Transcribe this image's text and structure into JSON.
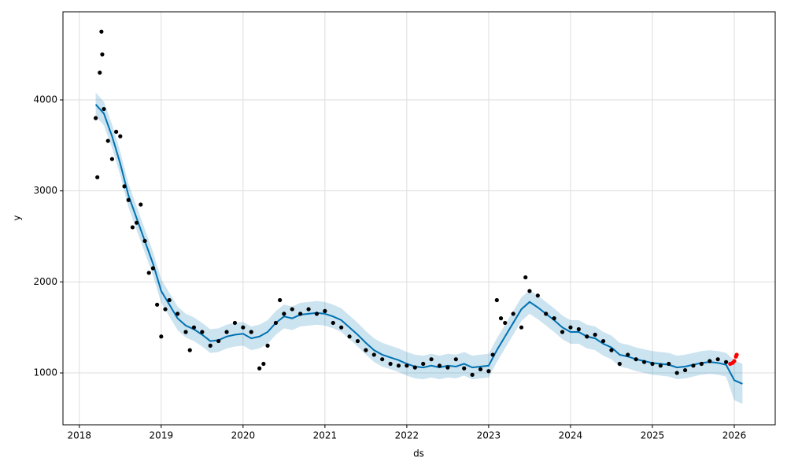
{
  "chart_data": {
    "type": "forecast",
    "xlabel": "ds",
    "ylabel": "y",
    "xlim": [
      2017.8,
      2026.5
    ],
    "ylim": [
      430,
      4968
    ],
    "xticks": [
      2018,
      2019,
      2020,
      2021,
      2022,
      2023,
      2024,
      2025,
      2026
    ],
    "yticks": [
      1000,
      2000,
      3000,
      4000
    ],
    "grid": true,
    "observed": {
      "color": "#000000",
      "x": [
        2018.2,
        2018.22,
        2018.25,
        2018.27,
        2018.28,
        2018.3,
        2018.35,
        2018.4,
        2018.45,
        2018.5,
        2018.55,
        2018.6,
        2018.65,
        2018.7,
        2018.75,
        2018.8,
        2018.85,
        2018.9,
        2018.95,
        2019.0,
        2019.05,
        2019.1,
        2019.2,
        2019.3,
        2019.35,
        2019.4,
        2019.5,
        2019.6,
        2019.7,
        2019.8,
        2019.9,
        2020.0,
        2020.1,
        2020.2,
        2020.25,
        2020.3,
        2020.4,
        2020.45,
        2020.5,
        2020.6,
        2020.7,
        2020.8,
        2020.9,
        2021.0,
        2021.1,
        2021.2,
        2021.3,
        2021.4,
        2021.5,
        2021.6,
        2021.7,
        2021.8,
        2021.9,
        2022.0,
        2022.1,
        2022.2,
        2022.3,
        2022.4,
        2022.5,
        2022.6,
        2022.7,
        2022.8,
        2022.9,
        2023.0,
        2023.05,
        2023.1,
        2023.15,
        2023.2,
        2023.3,
        2023.4,
        2023.45,
        2023.5,
        2023.6,
        2023.7,
        2023.8,
        2023.9,
        2024.0,
        2024.1,
        2024.2,
        2024.3,
        2024.4,
        2024.5,
        2024.6,
        2024.7,
        2024.8,
        2024.9,
        2025.0,
        2025.1,
        2025.2,
        2025.3,
        2025.4,
        2025.5,
        2025.6,
        2025.7,
        2025.8,
        2025.9
      ],
      "values": [
        3800,
        3150,
        4300,
        4750,
        4500,
        3900,
        3550,
        3350,
        3650,
        3600,
        3050,
        2900,
        2600,
        2650,
        2850,
        2450,
        2100,
        2150,
        1750,
        1400,
        1700,
        1800,
        1650,
        1450,
        1250,
        1500,
        1450,
        1300,
        1350,
        1450,
        1550,
        1500,
        1450,
        1050,
        1100,
        1300,
        1550,
        1800,
        1650,
        1700,
        1650,
        1700,
        1650,
        1680,
        1550,
        1500,
        1400,
        1350,
        1250,
        1200,
        1150,
        1100,
        1080,
        1080,
        1060,
        1100,
        1150,
        1080,
        1060,
        1150,
        1050,
        980,
        1040,
        1020,
        1200,
        1800,
        1600,
        1550,
        1650,
        1500,
        2050,
        1900,
        1850,
        1650,
        1600,
        1450,
        1500,
        1480,
        1400,
        1420,
        1350,
        1250,
        1100,
        1200,
        1150,
        1120,
        1100,
        1080,
        1100,
        1000,
        1030,
        1080,
        1100,
        1130,
        1150,
        1120
      ]
    },
    "recent": {
      "color": "#ff0000",
      "x": [
        2025.95,
        2025.98,
        2026.0,
        2026.02,
        2026.03
      ],
      "values": [
        1100,
        1110,
        1130,
        1180,
        1200
      ]
    },
    "forecast": {
      "color": "#0072b2",
      "band_color": "#0072b2",
      "x": [
        2018.2,
        2018.3,
        2018.4,
        2018.5,
        2018.6,
        2018.7,
        2018.8,
        2018.9,
        2019.0,
        2019.1,
        2019.2,
        2019.3,
        2019.4,
        2019.5,
        2019.6,
        2019.7,
        2019.8,
        2019.9,
        2020.0,
        2020.1,
        2020.2,
        2020.3,
        2020.4,
        2020.5,
        2020.6,
        2020.7,
        2020.8,
        2020.9,
        2021.0,
        2021.1,
        2021.2,
        2021.3,
        2021.4,
        2021.5,
        2021.6,
        2021.7,
        2021.8,
        2021.9,
        2022.0,
        2022.1,
        2022.2,
        2022.3,
        2022.4,
        2022.5,
        2022.6,
        2022.7,
        2022.8,
        2022.9,
        2023.0,
        2023.1,
        2023.2,
        2023.3,
        2023.4,
        2023.5,
        2023.6,
        2023.7,
        2023.8,
        2023.9,
        2024.0,
        2024.1,
        2024.2,
        2024.3,
        2024.4,
        2024.5,
        2024.6,
        2024.7,
        2024.8,
        2024.9,
        2025.0,
        2025.1,
        2025.2,
        2025.3,
        2025.4,
        2025.5,
        2025.6,
        2025.7,
        2025.8,
        2025.9,
        2026.0,
        2026.1
      ],
      "values": [
        3950,
        3850,
        3600,
        3300,
        2950,
        2700,
        2450,
        2200,
        1900,
        1750,
        1600,
        1520,
        1480,
        1420,
        1350,
        1360,
        1400,
        1420,
        1430,
        1380,
        1400,
        1450,
        1550,
        1620,
        1600,
        1640,
        1650,
        1660,
        1650,
        1620,
        1580,
        1500,
        1420,
        1330,
        1250,
        1200,
        1170,
        1140,
        1100,
        1070,
        1060,
        1080,
        1060,
        1080,
        1070,
        1100,
        1060,
        1070,
        1080,
        1250,
        1400,
        1550,
        1700,
        1780,
        1720,
        1650,
        1580,
        1500,
        1450,
        1450,
        1400,
        1380,
        1320,
        1280,
        1200,
        1180,
        1150,
        1130,
        1110,
        1100,
        1090,
        1060,
        1070,
        1090,
        1110,
        1120,
        1110,
        1090,
        920,
        880
      ],
      "lower": [
        3820,
        3720,
        3470,
        3170,
        2820,
        2570,
        2320,
        2070,
        1770,
        1620,
        1470,
        1390,
        1350,
        1290,
        1220,
        1230,
        1270,
        1290,
        1300,
        1250,
        1270,
        1320,
        1420,
        1490,
        1470,
        1510,
        1520,
        1530,
        1520,
        1490,
        1450,
        1370,
        1290,
        1200,
        1120,
        1070,
        1040,
        1010,
        970,
        940,
        930,
        950,
        930,
        950,
        940,
        970,
        930,
        940,
        950,
        1120,
        1270,
        1420,
        1570,
        1650,
        1590,
        1520,
        1450,
        1370,
        1320,
        1320,
        1270,
        1250,
        1190,
        1150,
        1070,
        1050,
        1020,
        1000,
        980,
        970,
        960,
        930,
        940,
        960,
        980,
        990,
        980,
        960,
        700,
        660
      ],
      "upper": [
        4080,
        3980,
        3730,
        3430,
        3080,
        2830,
        2580,
        2330,
        2030,
        1880,
        1730,
        1650,
        1610,
        1550,
        1480,
        1490,
        1530,
        1550,
        1560,
        1510,
        1530,
        1580,
        1680,
        1750,
        1730,
        1770,
        1780,
        1790,
        1780,
        1750,
        1710,
        1630,
        1550,
        1460,
        1380,
        1330,
        1300,
        1270,
        1230,
        1200,
        1190,
        1210,
        1190,
        1210,
        1200,
        1230,
        1190,
        1200,
        1210,
        1380,
        1530,
        1680,
        1830,
        1910,
        1850,
        1780,
        1710,
        1630,
        1580,
        1580,
        1530,
        1510,
        1450,
        1410,
        1330,
        1310,
        1280,
        1260,
        1240,
        1230,
        1220,
        1190,
        1200,
        1220,
        1240,
        1250,
        1240,
        1220,
        1140,
        1100
      ]
    }
  }
}
